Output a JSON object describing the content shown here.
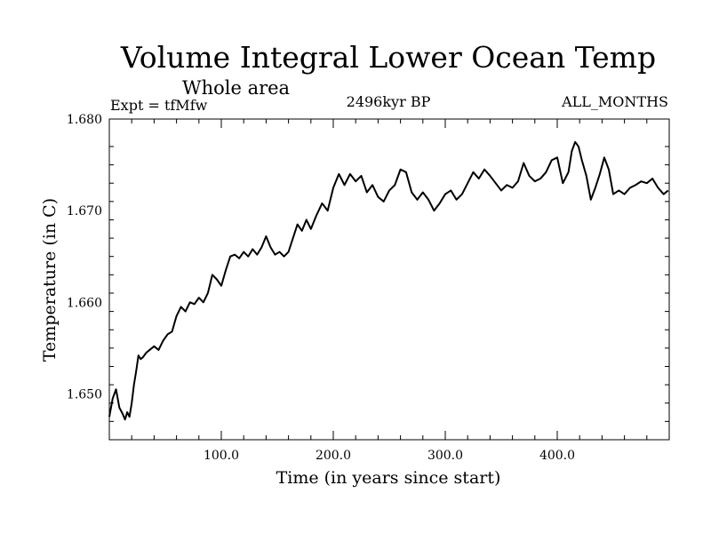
{
  "chart_data": {
    "type": "line",
    "title": "Volume Integral Lower Ocean Temp",
    "subtitle": "Whole area",
    "expt_label": "Expt = tfMfw",
    "period_label": "2496kyr BP",
    "months_label": "ALL_MONTHS",
    "xlabel": "Time (in years since start)",
    "ylabel": "Temperature (in C)",
    "xlim": [
      0,
      500
    ],
    "ylim": [
      1.645,
      1.68
    ],
    "x_ticks": [
      100,
      200,
      300,
      400
    ],
    "x_tick_labels": [
      "100.0",
      "200.0",
      "300.0",
      "400.0"
    ],
    "y_ticks": [
      1.65,
      1.66,
      1.67,
      1.68
    ],
    "y_tick_labels": [
      "1.650",
      "1.660",
      "1.670",
      "1.680"
    ],
    "grid": false,
    "series": [
      {
        "name": "tfMfw",
        "x": [
          0,
          3,
          6,
          9,
          12,
          14,
          16,
          18,
          20,
          22,
          24,
          26,
          28,
          30,
          33,
          36,
          40,
          44,
          48,
          52,
          56,
          60,
          64,
          68,
          72,
          76,
          80,
          84,
          88,
          92,
          96,
          100,
          104,
          108,
          112,
          116,
          120,
          124,
          128,
          132,
          136,
          140,
          144,
          148,
          152,
          156,
          160,
          164,
          168,
          172,
          176,
          180,
          185,
          190,
          195,
          200,
          205,
          210,
          215,
          220,
          225,
          230,
          235,
          240,
          245,
          250,
          255,
          260,
          265,
          270,
          275,
          280,
          285,
          290,
          295,
          300,
          305,
          310,
          315,
          320,
          325,
          330,
          335,
          340,
          345,
          350,
          355,
          360,
          365,
          370,
          375,
          380,
          385,
          390,
          395,
          400,
          405,
          410,
          413,
          416,
          419,
          422,
          426,
          430,
          434,
          438,
          442,
          446,
          450,
          455,
          460,
          465,
          470,
          475,
          480,
          485,
          490,
          495,
          499
        ],
        "values": [
          1.6475,
          1.6495,
          1.6505,
          1.6485,
          1.6478,
          1.6472,
          1.648,
          1.6475,
          1.649,
          1.651,
          1.6525,
          1.6542,
          1.6538,
          1.654,
          1.6545,
          1.6548,
          1.6552,
          1.6548,
          1.6558,
          1.6565,
          1.6568,
          1.6585,
          1.6595,
          1.659,
          1.66,
          1.6598,
          1.6605,
          1.66,
          1.661,
          1.663,
          1.6625,
          1.6618,
          1.6635,
          1.665,
          1.6652,
          1.6648,
          1.6655,
          1.665,
          1.6658,
          1.6652,
          1.666,
          1.6672,
          1.666,
          1.6652,
          1.6655,
          1.665,
          1.6655,
          1.667,
          1.6685,
          1.6678,
          1.669,
          1.668,
          1.6695,
          1.6708,
          1.67,
          1.6725,
          1.674,
          1.6728,
          1.674,
          1.6732,
          1.6738,
          1.672,
          1.6728,
          1.6715,
          1.671,
          1.6722,
          1.6728,
          1.6745,
          1.6742,
          1.672,
          1.6712,
          1.672,
          1.6712,
          1.67,
          1.6708,
          1.6718,
          1.6722,
          1.6712,
          1.6718,
          1.673,
          1.6742,
          1.6735,
          1.6745,
          1.6738,
          1.673,
          1.6722,
          1.6728,
          1.6725,
          1.6732,
          1.6752,
          1.6738,
          1.6732,
          1.6735,
          1.6742,
          1.6755,
          1.6758,
          1.673,
          1.6742,
          1.6765,
          1.6775,
          1.677,
          1.6755,
          1.6738,
          1.6712,
          1.6725,
          1.674,
          1.6758,
          1.6745,
          1.6718,
          1.6722,
          1.6718,
          1.6725,
          1.6728,
          1.6732,
          1.673,
          1.6735,
          1.6725,
          1.6718,
          1.6722
        ]
      }
    ]
  }
}
